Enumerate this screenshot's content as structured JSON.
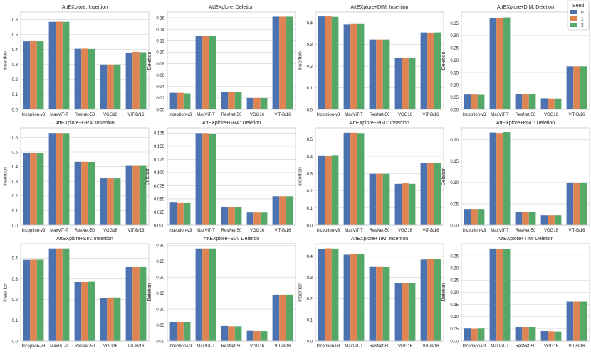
{
  "legend": {
    "title": "Seed",
    "items": [
      {
        "label": "0",
        "color": "#4C72B0"
      },
      {
        "label": "1",
        "color": "#DD8452"
      },
      {
        "label": "2",
        "color": "#55A868"
      }
    ]
  },
  "chart_data": [
    {
      "type": "bar",
      "title": "AttEXplore: Insertion",
      "xlabel": "",
      "ylabel": "Insertion",
      "categories": [
        "Inception-v3",
        "MaxViT-T",
        "ResNet-50",
        "VGG16",
        "ViT-B/16"
      ],
      "ylim": [
        0,
        0.65
      ],
      "yticks": [
        0,
        0.1,
        0.2,
        0.3,
        0.4,
        0.5,
        0.6
      ],
      "ytick_labels": [
        "0.0",
        "0.1",
        "0.2",
        "0.3",
        "0.4",
        "0.5",
        "0.6"
      ],
      "series": [
        {
          "name": "0",
          "values": [
            0.455,
            0.585,
            0.405,
            0.3,
            0.38
          ]
        },
        {
          "name": "1",
          "values": [
            0.456,
            0.586,
            0.406,
            0.3,
            0.385
          ]
        },
        {
          "name": "2",
          "values": [
            0.455,
            0.585,
            0.404,
            0.3,
            0.382
          ]
        }
      ]
    },
    {
      "type": "bar",
      "title": "AttEXplore: Deletion",
      "xlabel": "",
      "ylabel": "Deletion",
      "categories": [
        "Inception-v3",
        "MaxViT-T",
        "ResNet-50",
        "VGG16",
        "ViT-B/16"
      ],
      "ylim": [
        0,
        0.17
      ],
      "yticks": [
        0,
        0.02,
        0.04,
        0.06,
        0.08,
        0.1,
        0.12,
        0.14,
        0.16
      ],
      "ytick_labels": [
        "0.00",
        "0.02",
        "0.04",
        "0.06",
        "0.08",
        "0.10",
        "0.12",
        "0.14",
        "0.16"
      ],
      "series": [
        {
          "name": "0",
          "values": [
            0.029,
            0.128,
            0.031,
            0.02,
            0.162
          ]
        },
        {
          "name": "1",
          "values": [
            0.029,
            0.129,
            0.031,
            0.02,
            0.162
          ]
        },
        {
          "name": "2",
          "values": [
            0.028,
            0.128,
            0.031,
            0.02,
            0.162
          ]
        }
      ]
    },
    {
      "type": "bar",
      "title": "AttEXplore+DIM: Insertion",
      "xlabel": "",
      "ylabel": "Insertion",
      "categories": [
        "Inception-v3",
        "MaxViT-T",
        "ResNet-50",
        "VGG16",
        "ViT-B/16"
      ],
      "ylim": [
        0,
        0.45
      ],
      "yticks": [
        0,
        0.1,
        0.2,
        0.3,
        0.4
      ],
      "ytick_labels": [
        "0.0",
        "0.1",
        "0.2",
        "0.3",
        "0.4"
      ],
      "series": [
        {
          "name": "0",
          "values": [
            0.43,
            0.393,
            0.323,
            0.24,
            0.356
          ]
        },
        {
          "name": "1",
          "values": [
            0.43,
            0.395,
            0.323,
            0.24,
            0.355
          ]
        },
        {
          "name": "2",
          "values": [
            0.428,
            0.395,
            0.323,
            0.24,
            0.356
          ]
        }
      ]
    },
    {
      "type": "bar",
      "title": "AttEXplore+DIM: Deletion",
      "xlabel": "",
      "ylabel": "Deletion",
      "categories": [
        "Inception-v3",
        "MaxViT-T",
        "ResNet-50",
        "VGG16",
        "ViT-B/16"
      ],
      "ylim": [
        0,
        0.395
      ],
      "yticks": [
        0,
        0.05,
        0.1,
        0.15,
        0.2,
        0.25,
        0.3,
        0.35
      ],
      "ytick_labels": [
        "0.00",
        "0.05",
        "0.10",
        "0.15",
        "0.20",
        "0.25",
        "0.30",
        "0.35"
      ],
      "series": [
        {
          "name": "0",
          "values": [
            0.06,
            0.37,
            0.063,
            0.045,
            0.175
          ]
        },
        {
          "name": "1",
          "values": [
            0.06,
            0.372,
            0.063,
            0.044,
            0.175
          ]
        },
        {
          "name": "2",
          "values": [
            0.059,
            0.373,
            0.062,
            0.044,
            0.175
          ]
        }
      ]
    },
    {
      "type": "bar",
      "title": "AttEXplore+GRA: Insertion",
      "xlabel": "",
      "ylabel": "Insertion",
      "categories": [
        "Inception-v3",
        "MaxViT-T",
        "ResNet-50",
        "VGG16",
        "ViT-B/16"
      ],
      "ylim": [
        0,
        0.665
      ],
      "yticks": [
        0,
        0.1,
        0.2,
        0.3,
        0.4,
        0.5,
        0.6
      ],
      "ytick_labels": [
        "0.0",
        "0.1",
        "0.2",
        "0.3",
        "0.4",
        "0.5",
        "0.6"
      ],
      "series": [
        {
          "name": "0",
          "values": [
            0.493,
            0.63,
            0.433,
            0.32,
            0.405
          ]
        },
        {
          "name": "1",
          "values": [
            0.493,
            0.63,
            0.433,
            0.32,
            0.405
          ]
        },
        {
          "name": "2",
          "values": [
            0.492,
            0.63,
            0.432,
            0.32,
            0.405
          ]
        }
      ]
    },
    {
      "type": "bar",
      "title": "AttEXplore+GRA: Deletion",
      "xlabel": "",
      "ylabel": "Deletion",
      "categories": [
        "Inception-v3",
        "MaxViT-T",
        "ResNet-50",
        "VGG16",
        "ViT-B/16"
      ],
      "ylim": [
        0,
        0.185
      ],
      "yticks": [
        0,
        0.025,
        0.05,
        0.075,
        0.1,
        0.125,
        0.15,
        0.175
      ],
      "ytick_labels": [
        "0.000",
        "0.025",
        "0.050",
        "0.075",
        "0.100",
        "0.125",
        "0.150",
        "0.175"
      ],
      "series": [
        {
          "name": "0",
          "values": [
            0.043,
            0.175,
            0.035,
            0.024,
            0.055
          ]
        },
        {
          "name": "1",
          "values": [
            0.042,
            0.175,
            0.035,
            0.024,
            0.055
          ]
        },
        {
          "name": "2",
          "values": [
            0.042,
            0.174,
            0.034,
            0.024,
            0.055
          ]
        }
      ]
    },
    {
      "type": "bar",
      "title": "AttEXplore+PGD: Insertion",
      "xlabel": "",
      "ylabel": "Insertion",
      "categories": [
        "Inception-v3",
        "MaxViT-T",
        "ResNet-50",
        "VGG16",
        "ViT-B/16"
      ],
      "ylim": [
        0,
        0.565
      ],
      "yticks": [
        0,
        0.1,
        0.2,
        0.3,
        0.4,
        0.5
      ],
      "ytick_labels": [
        "0.0",
        "0.1",
        "0.2",
        "0.3",
        "0.4",
        "0.5"
      ],
      "series": [
        {
          "name": "0",
          "values": [
            0.405,
            0.537,
            0.298,
            0.24,
            0.36
          ]
        },
        {
          "name": "1",
          "values": [
            0.403,
            0.537,
            0.298,
            0.243,
            0.36
          ]
        },
        {
          "name": "2",
          "values": [
            0.407,
            0.535,
            0.298,
            0.24,
            0.36
          ]
        }
      ]
    },
    {
      "type": "bar",
      "title": "AttEXplore+PGD: Deletion",
      "xlabel": "",
      "ylabel": "Deletion",
      "categories": [
        "Inception-v3",
        "MaxViT-T",
        "ResNet-50",
        "VGG16",
        "ViT-B/16"
      ],
      "ylim": [
        0,
        0.228
      ],
      "yticks": [
        0,
        0.05,
        0.1,
        0.15,
        0.2
      ],
      "ytick_labels": [
        "0.00",
        "0.05",
        "0.10",
        "0.15",
        "0.20"
      ],
      "series": [
        {
          "name": "0",
          "values": [
            0.038,
            0.217,
            0.031,
            0.023,
            0.1
          ]
        },
        {
          "name": "1",
          "values": [
            0.038,
            0.216,
            0.031,
            0.023,
            0.099
          ]
        },
        {
          "name": "2",
          "values": [
            0.038,
            0.218,
            0.031,
            0.023,
            0.1
          ]
        }
      ]
    },
    {
      "type": "bar",
      "title": "AttEXplore+SIA: Insertion",
      "xlabel": "",
      "ylabel": "Insertion",
      "categories": [
        "Inception-v3",
        "MaxViT-T",
        "ResNet-50",
        "VGG16",
        "ViT-B/16"
      ],
      "ylim": [
        0,
        0.47
      ],
      "yticks": [
        0,
        0.1,
        0.2,
        0.3,
        0.4
      ],
      "ytick_labels": [
        "0.0",
        "0.1",
        "0.2",
        "0.3",
        "0.4"
      ],
      "series": [
        {
          "name": "0",
          "values": [
            0.392,
            0.447,
            0.285,
            0.208,
            0.357
          ]
        },
        {
          "name": "1",
          "values": [
            0.393,
            0.447,
            0.285,
            0.21,
            0.357
          ]
        },
        {
          "name": "2",
          "values": [
            0.393,
            0.447,
            0.286,
            0.21,
            0.357
          ]
        }
      ]
    },
    {
      "type": "bar",
      "title": "AttEXplore+SIA: Deletion",
      "xlabel": "",
      "ylabel": "Deletion",
      "categories": [
        "Inception-v3",
        "MaxViT-T",
        "ResNet-50",
        "VGG16",
        "ViT-B/16"
      ],
      "ylim": [
        0,
        0.305
      ],
      "yticks": [
        0,
        0.05,
        0.1,
        0.15,
        0.2,
        0.25,
        0.3
      ],
      "ytick_labels": [
        "0.00",
        "0.05",
        "0.10",
        "0.15",
        "0.20",
        "0.25",
        "0.30"
      ],
      "series": [
        {
          "name": "0",
          "values": [
            0.058,
            0.29,
            0.047,
            0.032,
            0.145
          ]
        },
        {
          "name": "1",
          "values": [
            0.058,
            0.29,
            0.046,
            0.031,
            0.145
          ]
        },
        {
          "name": "2",
          "values": [
            0.058,
            0.29,
            0.046,
            0.031,
            0.145
          ]
        }
      ]
    },
    {
      "type": "bar",
      "title": "AttEXplore+TIM: Insertion",
      "xlabel": "",
      "ylabel": "Insertion",
      "categories": [
        "Inception-v3",
        "MaxViT-T",
        "ResNet-50",
        "VGG16",
        "ViT-B/16"
      ],
      "ylim": [
        0,
        0.46
      ],
      "yticks": [
        0,
        0.1,
        0.2,
        0.3,
        0.4
      ],
      "ytick_labels": [
        "0.0",
        "0.1",
        "0.2",
        "0.3",
        "0.4"
      ],
      "series": [
        {
          "name": "0",
          "values": [
            0.436,
            0.408,
            0.35,
            0.273,
            0.385
          ]
        },
        {
          "name": "1",
          "values": [
            0.438,
            0.412,
            0.35,
            0.273,
            0.388
          ]
        },
        {
          "name": "2",
          "values": [
            0.437,
            0.411,
            0.349,
            0.272,
            0.386
          ]
        }
      ]
    },
    {
      "type": "bar",
      "title": "AttEXplore+TIM: Deletion",
      "xlabel": "",
      "ylabel": "Deletion",
      "categories": [
        "Inception-v3",
        "MaxViT-T",
        "ResNet-50",
        "VGG16",
        "ViT-B/16"
      ],
      "ylim": [
        0,
        0.4
      ],
      "yticks": [
        0,
        0.05,
        0.1,
        0.15,
        0.2,
        0.25,
        0.3,
        0.35
      ],
      "ytick_labels": [
        "0.00",
        "0.05",
        "0.10",
        "0.15",
        "0.20",
        "0.25",
        "0.30",
        "0.35"
      ],
      "series": [
        {
          "name": "0",
          "values": [
            0.052,
            0.38,
            0.057,
            0.041,
            0.162
          ]
        },
        {
          "name": "1",
          "values": [
            0.051,
            0.377,
            0.057,
            0.04,
            0.162
          ]
        },
        {
          "name": "2",
          "values": [
            0.052,
            0.378,
            0.057,
            0.039,
            0.162
          ]
        }
      ]
    }
  ]
}
